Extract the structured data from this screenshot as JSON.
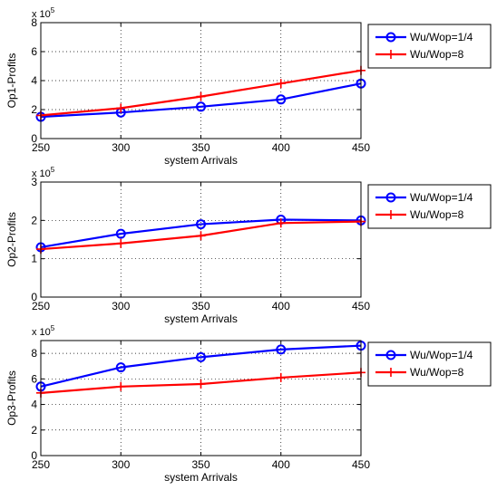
{
  "chart_data": [
    {
      "type": "line",
      "ylabel": "Op1-Profits",
      "xlabel": "system Arrivals",
      "exponent_base": "x 10",
      "exponent_power": "5",
      "xlim": [
        250,
        450
      ],
      "ylim": [
        0,
        8
      ],
      "xticks": [
        250,
        300,
        350,
        400,
        450
      ],
      "yticks": [
        0,
        2,
        4,
        6,
        8
      ],
      "grid": true,
      "legend_position": "right",
      "series": [
        {
          "name": "Wu/Wop=1/4",
          "color": "#0000ff",
          "marker": "circle",
          "x": [
            250,
            300,
            350,
            400,
            450
          ],
          "y": [
            1.5,
            1.8,
            2.2,
            2.7,
            3.8
          ]
        },
        {
          "name": "Wu/Wop=8",
          "color": "#ff0000",
          "marker": "plus",
          "x": [
            250,
            300,
            350,
            400,
            450
          ],
          "y": [
            1.6,
            2.1,
            2.9,
            3.8,
            4.7
          ]
        }
      ]
    },
    {
      "type": "line",
      "ylabel": "Op2-Profits",
      "xlabel": "system Arrivals",
      "exponent_base": "x 10",
      "exponent_power": "5",
      "xlim": [
        250,
        450
      ],
      "ylim": [
        0,
        3
      ],
      "xticks": [
        250,
        300,
        350,
        400,
        450
      ],
      "yticks": [
        0,
        1,
        2,
        3
      ],
      "grid": true,
      "legend_position": "right",
      "series": [
        {
          "name": "Wu/Wop=1/4",
          "color": "#0000ff",
          "marker": "circle",
          "x": [
            250,
            300,
            350,
            400,
            450
          ],
          "y": [
            1.3,
            1.65,
            1.9,
            2.02,
            2.0
          ]
        },
        {
          "name": "Wu/Wop=8",
          "color": "#ff0000",
          "marker": "plus",
          "x": [
            250,
            300,
            350,
            400,
            450
          ],
          "y": [
            1.25,
            1.4,
            1.6,
            1.93,
            1.97
          ]
        }
      ]
    },
    {
      "type": "line",
      "ylabel": "Op3-Profits",
      "xlabel": "system Arrivals",
      "exponent_base": "x 10",
      "exponent_power": "5",
      "xlim": [
        250,
        450
      ],
      "ylim": [
        0,
        9
      ],
      "xticks": [
        250,
        300,
        350,
        400,
        450
      ],
      "yticks": [
        0,
        2,
        4,
        6,
        8
      ],
      "grid": true,
      "legend_position": "right",
      "series": [
        {
          "name": "Wu/Wop=1/4",
          "color": "#0000ff",
          "marker": "circle",
          "x": [
            250,
            300,
            350,
            400,
            450
          ],
          "y": [
            5.4,
            6.9,
            7.7,
            8.3,
            8.6
          ]
        },
        {
          "name": "Wu/Wop=8",
          "color": "#ff0000",
          "marker": "plus",
          "x": [
            250,
            300,
            350,
            400,
            450
          ],
          "y": [
            4.9,
            5.4,
            5.6,
            6.1,
            6.5
          ]
        }
      ]
    }
  ]
}
